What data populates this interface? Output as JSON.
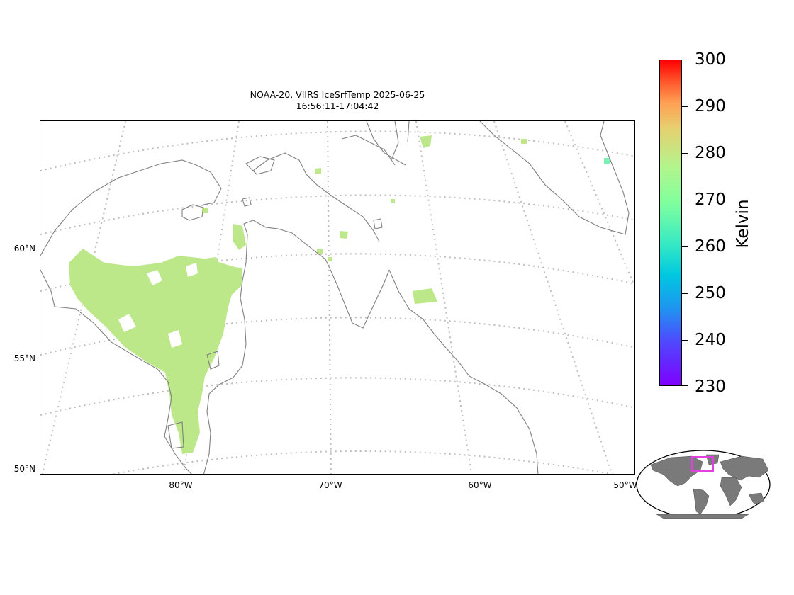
{
  "map": {
    "title_line1": "NOAA-20, VIIRS IceSrfTemp 2025-06-25",
    "title_line2": "16:56:11-17:04:42",
    "lat_labels": [
      "60°N",
      "55°N",
      "50°N"
    ],
    "lon_labels": [
      "80°W",
      "70°W",
      "60°W",
      "50°W"
    ],
    "gridlines": "dotted",
    "land_outline_color": "#808080",
    "data_color": "#bde88a"
  },
  "colorbar": {
    "label": "Kelvin",
    "ticks": [
      "300",
      "290",
      "280",
      "270",
      "260",
      "250",
      "240",
      "230"
    ],
    "min": 230,
    "max": 300,
    "colormap": "rainbow"
  },
  "inset": {
    "projection": "robinson",
    "land_color": "#7a7a7a",
    "box_color": "#e040e0"
  }
}
